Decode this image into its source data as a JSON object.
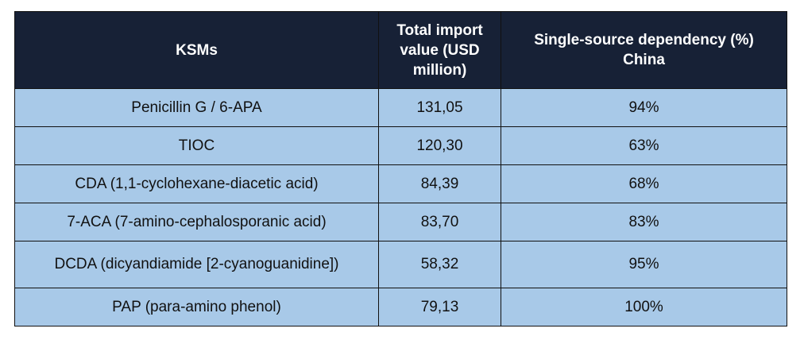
{
  "table": {
    "headers": [
      "KSMs",
      "Total import value (USD million)",
      "Single-source dependency  (%) China"
    ],
    "rows": [
      [
        "Penicillin G / 6-APA",
        "131,05",
        "94%"
      ],
      [
        "TIOC",
        "120,30",
        "63%"
      ],
      [
        "CDA (1,1-cyclohexane-diacetic acid)",
        "84,39",
        "68%"
      ],
      [
        "7-ACA (7-amino-cephalosporanic acid)",
        "83,70",
        "83%"
      ],
      [
        "DCDA (dicyandiamide [2-cyanoguanidine])",
        "58,32",
        "95%"
      ],
      [
        "PAP (para-amino phenol)",
        "79,13",
        "100%"
      ]
    ],
    "colors": {
      "header_background": "#172136",
      "header_text": "#ffffff",
      "row_background": "#a8c9e8",
      "border": "#111111"
    }
  }
}
